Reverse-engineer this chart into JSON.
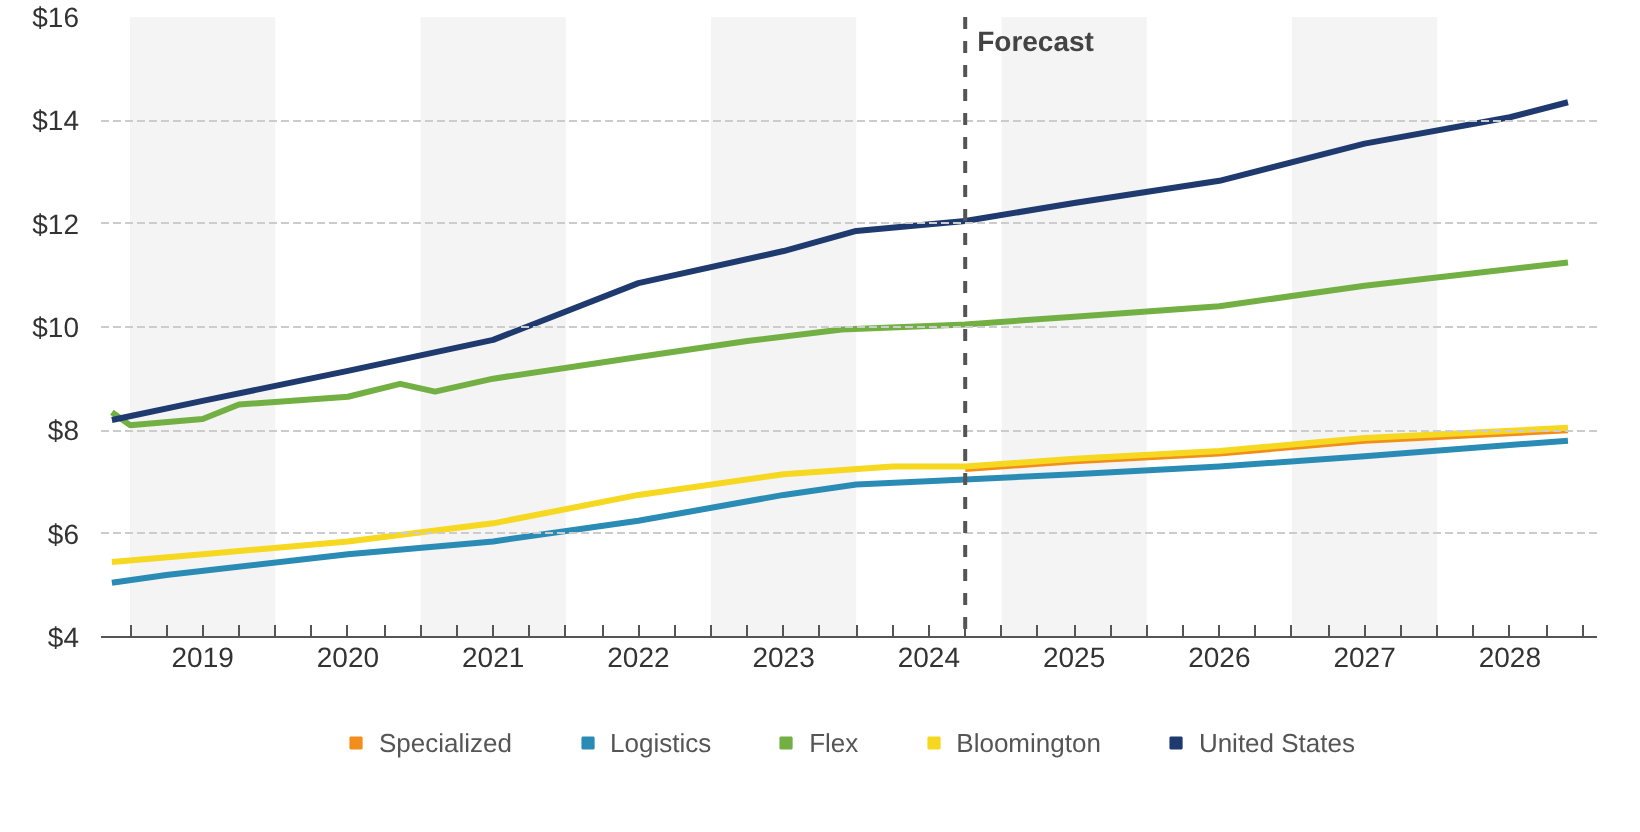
{
  "chart_data": {
    "type": "line",
    "xlim": [
      2018.8,
      2029.1
    ],
    "ylim": [
      4,
      16
    ],
    "yticks": [
      {
        "value": 4,
        "label": "$4"
      },
      {
        "value": 6,
        "label": "$6"
      },
      {
        "value": 8,
        "label": "$8"
      },
      {
        "value": 10,
        "label": "$10"
      },
      {
        "value": 12,
        "label": "$12"
      },
      {
        "value": 14,
        "label": "$14"
      },
      {
        "value": 16,
        "label": "$16"
      }
    ],
    "xticks": [
      {
        "value": 2019,
        "label": null
      },
      {
        "value": 2019.25,
        "label": null
      },
      {
        "value": 2019.5,
        "label": "2019"
      },
      {
        "value": 2019.75,
        "label": null
      },
      {
        "value": 2020,
        "label": null
      },
      {
        "value": 2020.25,
        "label": null
      },
      {
        "value": 2020.5,
        "label": "2020"
      },
      {
        "value": 2020.75,
        "label": null
      },
      {
        "value": 2021,
        "label": null
      },
      {
        "value": 2021.25,
        "label": null
      },
      {
        "value": 2021.5,
        "label": "2021"
      },
      {
        "value": 2021.75,
        "label": null
      },
      {
        "value": 2022,
        "label": null
      },
      {
        "value": 2022.25,
        "label": null
      },
      {
        "value": 2022.5,
        "label": "2022"
      },
      {
        "value": 2022.75,
        "label": null
      },
      {
        "value": 2023,
        "label": null
      },
      {
        "value": 2023.25,
        "label": null
      },
      {
        "value": 2023.5,
        "label": "2023"
      },
      {
        "value": 2023.75,
        "label": null
      },
      {
        "value": 2024,
        "label": null
      },
      {
        "value": 2024.25,
        "label": null
      },
      {
        "value": 2024.5,
        "label": "2024"
      },
      {
        "value": 2024.75,
        "label": null
      },
      {
        "value": 2025,
        "label": null
      },
      {
        "value": 2025.25,
        "label": null
      },
      {
        "value": 2025.5,
        "label": "2025"
      },
      {
        "value": 2025.75,
        "label": null
      },
      {
        "value": 2026,
        "label": null
      },
      {
        "value": 2026.25,
        "label": null
      },
      {
        "value": 2026.5,
        "label": "2026"
      },
      {
        "value": 2026.75,
        "label": null
      },
      {
        "value": 2027,
        "label": null
      },
      {
        "value": 2027.25,
        "label": null
      },
      {
        "value": 2027.5,
        "label": "2027"
      },
      {
        "value": 2027.75,
        "label": null
      },
      {
        "value": 2028,
        "label": null
      },
      {
        "value": 2028.25,
        "label": null
      },
      {
        "value": 2028.5,
        "label": "2028"
      },
      {
        "value": 2028.75,
        "label": null
      },
      {
        "value": 2029,
        "label": null
      }
    ],
    "grid": "y",
    "legend": "bottom",
    "line_style": "solid",
    "bands": [
      {
        "axis": "x",
        "from": 2019,
        "to": 2020,
        "label": null,
        "color": "#f4f4f4"
      },
      {
        "axis": "x",
        "from": 2021,
        "to": 2022,
        "label": null,
        "color": "#f4f4f4"
      },
      {
        "axis": "x",
        "from": 2023,
        "to": 2024,
        "label": null,
        "color": "#f4f4f4"
      },
      {
        "axis": "x",
        "from": 2025,
        "to": 2026,
        "label": null,
        "color": "#f4f4f4"
      },
      {
        "axis": "x",
        "from": 2027,
        "to": 2028,
        "label": null,
        "color": "#f4f4f4"
      }
    ],
    "ref_lines": [
      {
        "axis": "x",
        "value": 2024.75,
        "label": "Forecast",
        "color": "#555555",
        "line_style": "dashed"
      }
    ],
    "series": [
      {
        "name": "Specialized",
        "color": "#f28e1c",
        "x": [
          2024.75,
          2025.5,
          2026.5,
          2027.5,
          2028.9
        ],
        "values": [
          7.25,
          7.4,
          7.55,
          7.8,
          8.0
        ]
      },
      {
        "name": "Logistics",
        "color": "#2a8cb5",
        "x": [
          2018.875,
          2019.25,
          2020.5,
          2021.5,
          2022.5,
          2023.5,
          2024.0,
          2024.75,
          2025.5,
          2026.5,
          2027.5,
          2028.9
        ],
        "values": [
          5.05,
          5.2,
          5.6,
          5.85,
          6.25,
          6.75,
          6.95,
          7.05,
          7.15,
          7.3,
          7.5,
          7.8
        ]
      },
      {
        "name": "Flex",
        "color": "#72b043",
        "x": [
          2018.875,
          2019.0,
          2019.5,
          2019.75,
          2020.5,
          2020.86,
          2021.1,
          2021.5,
          2022.5,
          2023.25,
          2023.9,
          2024.75,
          2025.5,
          2026.5,
          2027.5,
          2028.9
        ],
        "values": [
          8.35,
          8.1,
          8.22,
          8.5,
          8.65,
          8.9,
          8.75,
          9.0,
          9.42,
          9.73,
          9.95,
          10.05,
          10.2,
          10.4,
          10.8,
          11.25
        ]
      },
      {
        "name": "Bloomington",
        "color": "#f5d81f",
        "x": [
          2018.875,
          2019.5,
          2020.5,
          2021.5,
          2022.5,
          2023.5,
          2024.25,
          2024.75,
          2025.5,
          2026.5,
          2027.5,
          2028.9
        ],
        "values": [
          5.45,
          5.6,
          5.85,
          6.2,
          6.75,
          7.15,
          7.3,
          7.3,
          7.45,
          7.6,
          7.85,
          8.05
        ]
      },
      {
        "name": "United States",
        "color": "#1f3a6e",
        "x": [
          2018.875,
          2019.5,
          2020.5,
          2021.5,
          2022.5,
          2023.5,
          2024.0,
          2024.75,
          2025.5,
          2026.5,
          2027.5,
          2028.5,
          2028.9
        ],
        "values": [
          8.2,
          8.57,
          9.15,
          9.75,
          10.85,
          11.47,
          11.86,
          12.05,
          12.4,
          12.83,
          13.55,
          14.06,
          14.35
        ]
      }
    ]
  }
}
